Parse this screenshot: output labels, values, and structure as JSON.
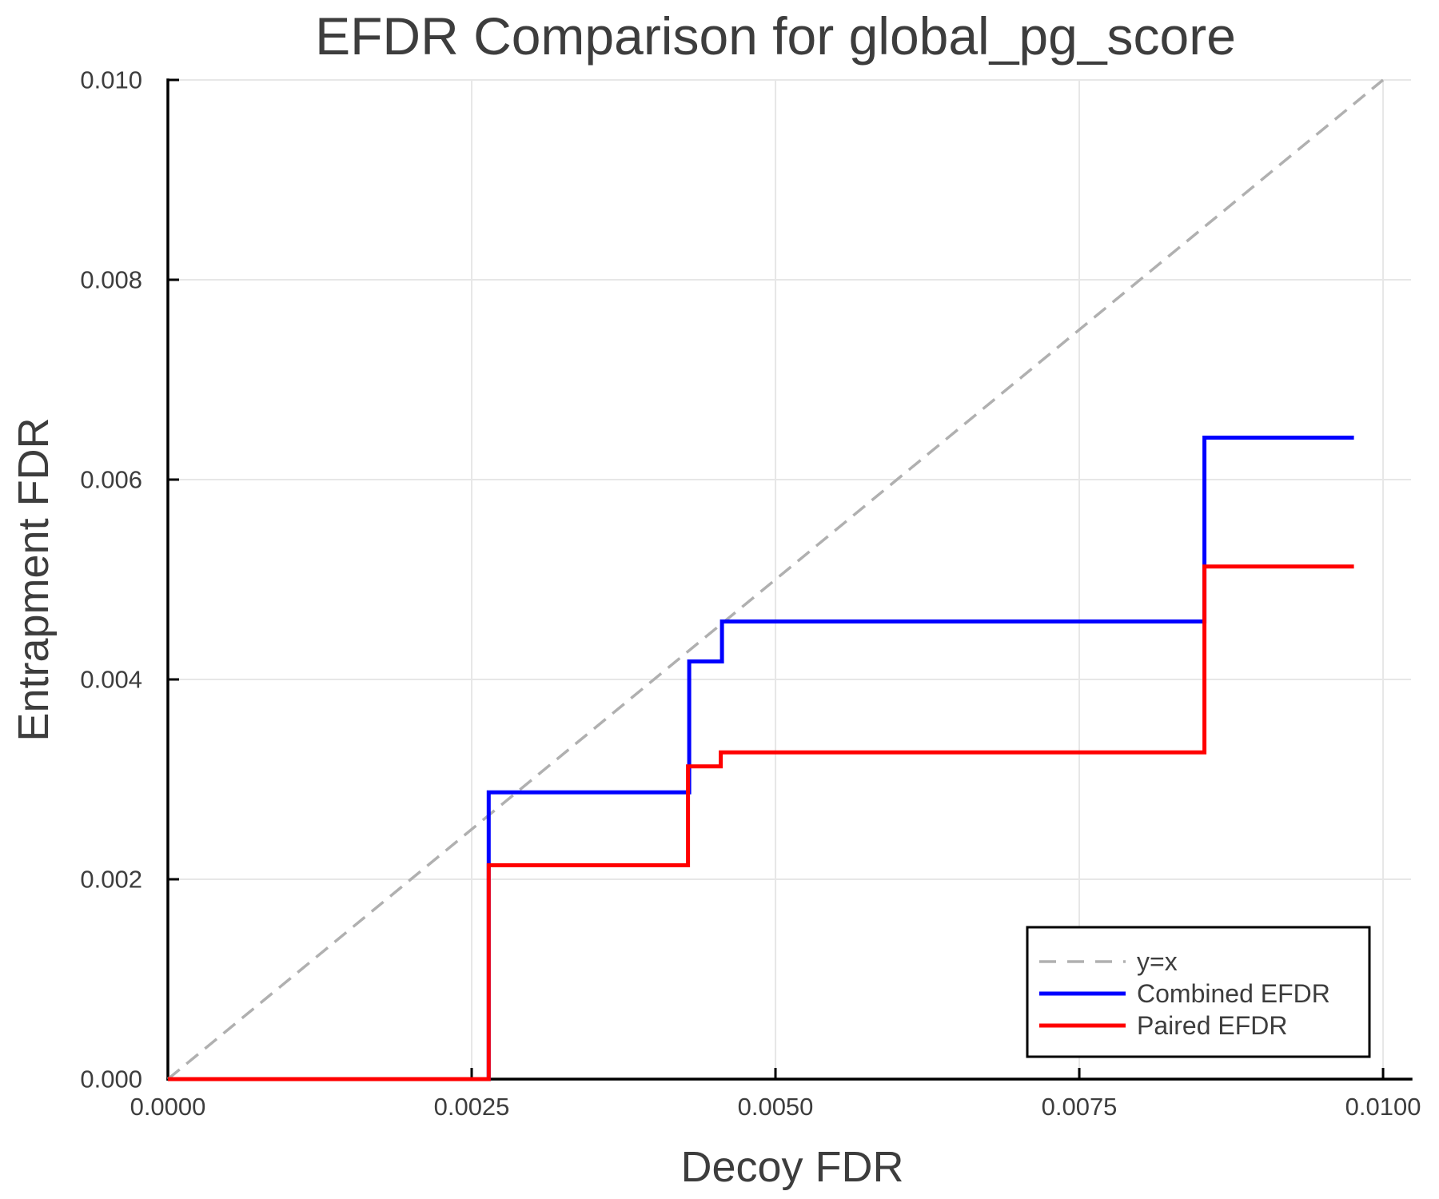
{
  "title": "EFDR Comparison for global_pg_score",
  "colors": {
    "background": "#ffffff",
    "text": "#3d3d3d",
    "spine": "#000000",
    "grid": "#e7e7e7",
    "identity_line": "#b0b0b0",
    "combined_efdr": "#0000ff",
    "paired_efdr": "#ff0000"
  },
  "chart_data": {
    "type": "line",
    "title": "EFDR Comparison for global_pg_score",
    "xlabel": "Decoy FDR",
    "ylabel": "Entrapment FDR",
    "xlim": [
      0,
      0.01023
    ],
    "ylim": [
      0,
      0.01
    ],
    "grid": true,
    "legend_position": "lower right",
    "x_ticks": [
      0,
      0.0025,
      0.005,
      0.0075,
      0.01
    ],
    "x_tick_labels": [
      "0.0000",
      "0.0025",
      "0.0050",
      "0.0075",
      "0.0100"
    ],
    "y_ticks": [
      0,
      0.002,
      0.004,
      0.006,
      0.008,
      0.01
    ],
    "y_tick_labels": [
      "0.000",
      "0.002",
      "0.004",
      "0.006",
      "0.008",
      "0.010"
    ],
    "series": [
      {
        "name": "y=x",
        "draw": "line",
        "line_style": "dashed",
        "color": "#b0b0b0",
        "points": [
          [
            0,
            0
          ],
          [
            0.01,
            0.01
          ]
        ]
      },
      {
        "name": "Combined EFDR",
        "draw": "step-post",
        "line_style": "solid",
        "color": "#0000ff",
        "points": [
          [
            0,
            0
          ],
          [
            0.00264,
            0.00287
          ],
          [
            0.00429,
            0.00418
          ],
          [
            0.00456,
            0.00458
          ],
          [
            0.00853,
            0.00642
          ],
          [
            0.00976,
            0.00642
          ]
        ]
      },
      {
        "name": "Paired EFDR",
        "draw": "step-post",
        "line_style": "solid",
        "color": "#ff0000",
        "points": [
          [
            0,
            0
          ],
          [
            0.00264,
            0.00214
          ],
          [
            0.00428,
            0.00313
          ],
          [
            0.00455,
            0.00327
          ],
          [
            0.00853,
            0.00513
          ],
          [
            0.00976,
            0.00513
          ]
        ]
      }
    ]
  }
}
